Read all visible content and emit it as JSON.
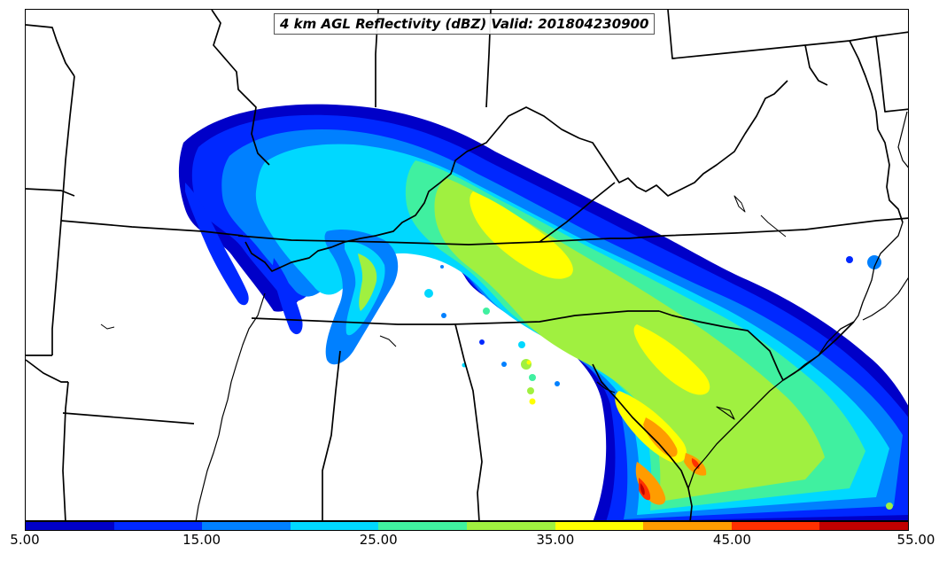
{
  "title": "4 km AGL Reflectivity (dBZ) Valid: 201804230900",
  "colorbar": {
    "colors": [
      "#0000c8",
      "#0028ff",
      "#0080ff",
      "#00d8ff",
      "#40f0a0",
      "#a0f040",
      "#ffff00",
      "#ff9c00",
      "#ff3000",
      "#c00000"
    ],
    "ticks": [
      "5.00",
      "15.00",
      "25.00",
      "35.00",
      "45.00",
      "55.00"
    ]
  }
}
